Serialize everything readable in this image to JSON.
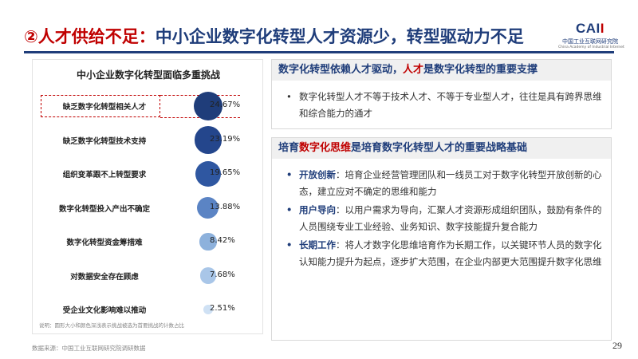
{
  "header": {
    "title_prefix": "②",
    "title_red": "人才供给不足：",
    "title_blue": "中小企业数字化转型人才资源少，转型驱动力不足"
  },
  "logo": {
    "mark_text": "CAI",
    "mark_bars": "I",
    "cn_name": "中国工业互联网研究院",
    "en_name": "China Academy of Industrial Internet"
  },
  "chart_data": {
    "type": "bubble",
    "title": "中小企业数字化转型面临多重挑战",
    "categories": [
      "缺乏数字化转型相关人才",
      "缺乏数字化转型技术支持",
      "组织变革跟不上转型要求",
      "数字化转型投入产出不确定",
      "数字化转型资金筹措难",
      "对数据安全存在顾虑",
      "受企业文化影响难以推动"
    ],
    "values": [
      24.67,
      23.19,
      19.65,
      13.88,
      8.42,
      7.68,
      2.51
    ],
    "value_labels": [
      "24.67%",
      "23.19%",
      "19.65%",
      "13.88%",
      "8.42%",
      "7.68%",
      "2.51%"
    ],
    "highlight_index": 0,
    "note": "说明：圆形大小和颜色深浅表示挑战被选为首要挑战的计数占比",
    "colors": [
      "#1f3d7a",
      "#24468c",
      "#2f57a1",
      "#5b84c4",
      "#8db1dc",
      "#a9c6e8",
      "#cfe1f4"
    ]
  },
  "top_box": {
    "heading_blue": "数字化转型依赖人才驱动，",
    "heading_red": "人才",
    "heading_tail": "是数字化转型的重要支撑",
    "bullet": "数字化转型人才不等于技术人才、不等于专业型人才，往往是具有跨界思维和综合能力的通才"
  },
  "bottom_box": {
    "heading_pre": "培育",
    "heading_red": "数字化思维",
    "heading_tail": "是培育数字化转型人才的重要战略基础",
    "items": [
      {
        "keyword": "开放创新",
        "text": "：培育企业经营管理团队和一线员工对于数字化转型开放创新的心态，建立应对不确定的思维和能力"
      },
      {
        "keyword": "用户导向",
        "text": "：以用户需求为导向，汇聚人才资源形成组织团队，鼓励有条件的人员围绕专业工业经验、业务知识、数字技能提升复合能力"
      },
      {
        "keyword": "长期工作",
        "text": "：将人才数字化思维培育作为长期工作，以关键环节人员的数字化认知能力提升为起点，逐步扩大范围，在企业内部更大范围提升数字化思维"
      }
    ]
  },
  "footer": {
    "source": "数据来源：中国工业互联网研究院调研数据",
    "page": "29"
  }
}
